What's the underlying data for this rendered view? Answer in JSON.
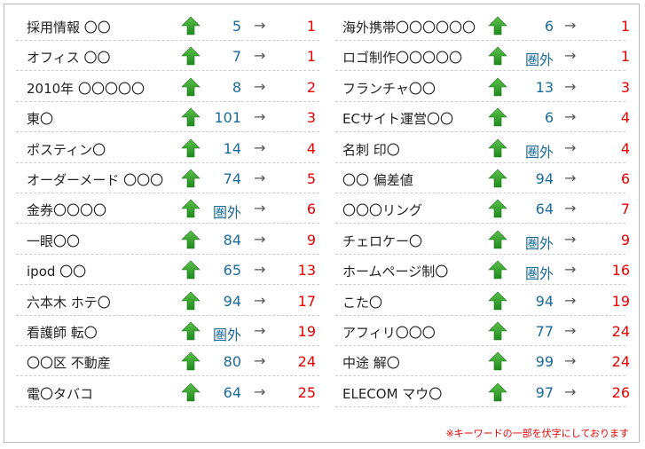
{
  "arrow": "→",
  "columns": [
    {
      "rows": [
        {
          "keyword": "採用情報 〇〇",
          "before": 5,
          "after": 1
        },
        {
          "keyword": "オフィス 〇〇",
          "before": 7,
          "after": 1
        },
        {
          "keyword": "2010年 〇〇〇〇〇",
          "before": 8,
          "after": 2
        },
        {
          "keyword": "東〇",
          "before": 101,
          "after": 3
        },
        {
          "keyword": "ポスティン〇",
          "before": 14,
          "after": 4
        },
        {
          "keyword": "オーダーメード 〇〇〇",
          "before": 74,
          "after": 5
        },
        {
          "keyword": "金券〇〇〇〇",
          "before": "圏外",
          "after": 6
        },
        {
          "keyword": "一眼〇〇",
          "before": 84,
          "after": 9
        },
        {
          "keyword": "ipod 〇〇",
          "before": 65,
          "after": 13
        },
        {
          "keyword": "六本木 ホテ〇",
          "before": 94,
          "after": 17
        },
        {
          "keyword": "看護師 転〇",
          "before": "圏外",
          "after": 19
        },
        {
          "keyword": "〇〇区 不動産",
          "before": 80,
          "after": 24
        },
        {
          "keyword": "電〇タバコ",
          "before": 64,
          "after": 25
        }
      ]
    },
    {
      "rows": [
        {
          "keyword": "海外携帯〇〇〇〇〇〇",
          "before": 6,
          "after": 1
        },
        {
          "keyword": "ロゴ制作〇〇〇〇〇",
          "before": "圏外",
          "after": 1
        },
        {
          "keyword": "フランチャ〇〇",
          "before": 13,
          "after": 3
        },
        {
          "keyword": "ECサイト運営〇〇",
          "before": 6,
          "after": 4
        },
        {
          "keyword": "名刺 印〇",
          "before": "圏外",
          "after": 4
        },
        {
          "keyword": "〇〇 偏差値",
          "before": 94,
          "after": 6
        },
        {
          "keyword": "〇〇〇リング",
          "before": 64,
          "after": 7
        },
        {
          "keyword": "チェロケー〇",
          "before": "圏外",
          "after": 9
        },
        {
          "keyword": "ホームページ制〇",
          "before": "圏外",
          "after": 16
        },
        {
          "keyword": "こた〇",
          "before": 94,
          "after": 19
        },
        {
          "keyword": "アフィリ〇〇〇",
          "before": 77,
          "after": 24
        },
        {
          "keyword": "中途 解〇",
          "before": 99,
          "after": 24
        },
        {
          "keyword": "ELECOM マウ〇",
          "before": 97,
          "after": 26
        }
      ]
    }
  ],
  "note": "※キーワードの一部を伏字にしております"
}
